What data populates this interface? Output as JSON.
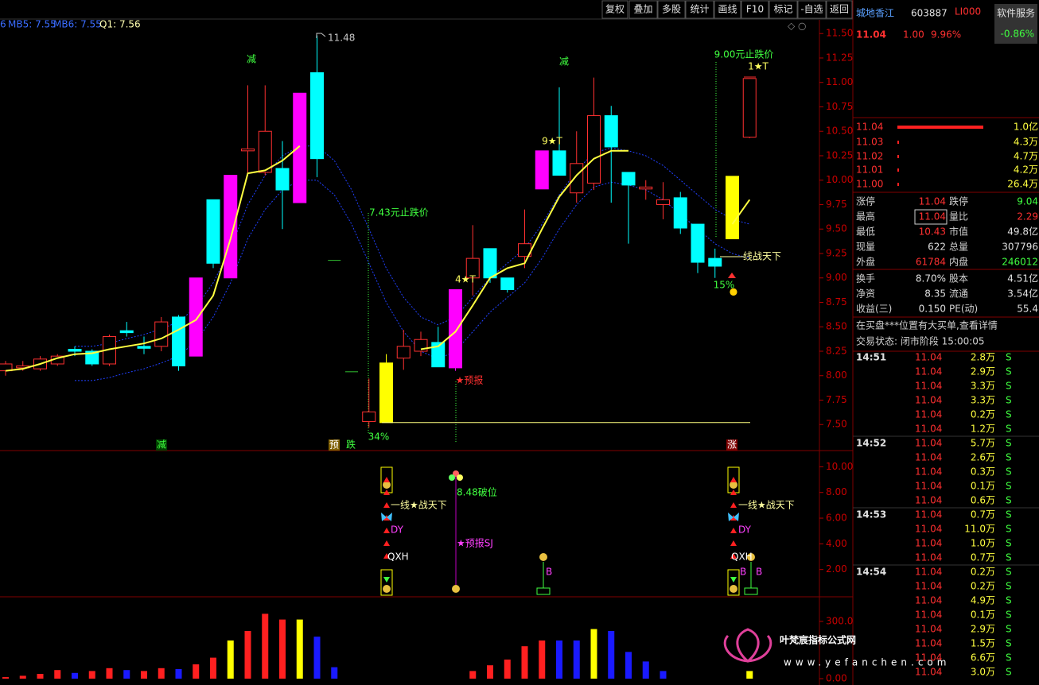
{
  "toolbar": [
    "复权",
    "叠加",
    "多股",
    "统计",
    "画线",
    "F10",
    "标记",
    "-自选",
    "返回"
  ],
  "legend": [
    {
      "text": "6",
      "color": "#3a6cff"
    },
    {
      "text": "MB5: 7.55",
      "color": "#3a6cff"
    },
    {
      "text": "MB6: 7.55",
      "color": "#3a6cff"
    },
    {
      "text": "Q1: 7.56",
      "color": "#ffffb0"
    }
  ],
  "main_chart": {
    "type": "candlestick",
    "ylim": [
      7.25,
      11.64
    ],
    "yticks": [
      {
        "value": 11.5,
        "label": "11.50"
      },
      {
        "value": 11.25,
        "label": "11.25"
      },
      {
        "value": 11.0,
        "label": "11.00"
      },
      {
        "value": 10.75,
        "label": "10.75"
      },
      {
        "value": 10.5,
        "label": "10.50"
      },
      {
        "value": 10.25,
        "label": "10.25"
      },
      {
        "value": 10.0,
        "label": "10.00"
      },
      {
        "value": 9.75,
        "label": "9.75"
      },
      {
        "value": 9.5,
        "label": "9.50"
      },
      {
        "value": 9.25,
        "label": "9.25"
      },
      {
        "value": 9.0,
        "label": "9.00"
      },
      {
        "value": 8.75,
        "label": "8.75"
      },
      {
        "value": 8.5,
        "label": "8.50"
      },
      {
        "value": 8.25,
        "label": "8.25"
      },
      {
        "value": 8.0,
        "label": "8.00"
      },
      {
        "value": 7.75,
        "label": "7.75"
      },
      {
        "value": 7.5,
        "label": "7.50"
      }
    ],
    "candles": [
      {
        "o": 8.05,
        "h": 8.15,
        "l": 8.0,
        "c": 8.12,
        "color": "red"
      },
      {
        "o": 8.08,
        "h": 8.15,
        "l": 8.05,
        "c": 8.1,
        "color": "red"
      },
      {
        "o": 8.07,
        "h": 8.2,
        "l": 8.05,
        "c": 8.17,
        "color": "red"
      },
      {
        "o": 8.12,
        "h": 8.22,
        "l": 8.1,
        "c": 8.2,
        "color": "red"
      },
      {
        "o": 8.27,
        "h": 8.3,
        "l": 8.2,
        "c": 8.25,
        "color": "cyan"
      },
      {
        "o": 8.25,
        "h": 8.27,
        "l": 8.1,
        "c": 8.12,
        "color": "cyan"
      },
      {
        "o": 8.12,
        "h": 8.42,
        "l": 8.1,
        "c": 8.4,
        "color": "red"
      },
      {
        "o": 8.46,
        "h": 8.55,
        "l": 8.4,
        "c": 8.44,
        "color": "cyan"
      },
      {
        "o": 8.3,
        "h": 8.4,
        "l": 8.22,
        "c": 8.28,
        "color": "cyan"
      },
      {
        "o": 8.3,
        "h": 8.6,
        "l": 8.25,
        "c": 8.55,
        "color": "red"
      },
      {
        "o": 8.6,
        "h": 8.62,
        "l": 8.05,
        "c": 8.1,
        "color": "cyan"
      },
      {
        "o": 8.2,
        "h": 9.0,
        "l": 8.2,
        "c": 9.0,
        "color": "magenta"
      },
      {
        "o": 9.8,
        "h": 9.8,
        "l": 9.1,
        "c": 9.15,
        "color": "cyan"
      },
      {
        "o": 9.0,
        "h": 10.05,
        "l": 9.0,
        "c": 10.05,
        "color": "magenta"
      },
      {
        "o": 10.3,
        "h": 10.97,
        "l": 10.05,
        "c": 10.32,
        "color": "red"
      },
      {
        "o": 10.08,
        "h": 10.97,
        "l": 10.05,
        "c": 10.5,
        "color": "red"
      },
      {
        "o": 10.12,
        "h": 10.4,
        "l": 9.5,
        "c": 9.9,
        "color": "cyan"
      },
      {
        "o": 9.77,
        "h": 10.89,
        "l": 9.77,
        "c": 10.89,
        "color": "magenta"
      },
      {
        "o": 11.1,
        "h": 11.48,
        "l": 10.03,
        "c": 10.22,
        "color": "cyan"
      },
      {
        "o": 9.18,
        "h": 9.18,
        "l": 9.18,
        "c": 9.18,
        "color": "green"
      },
      {
        "o": 8.04,
        "h": 8.04,
        "l": 8.04,
        "c": 8.04,
        "color": "green"
      },
      {
        "o": 7.53,
        "h": 7.97,
        "l": 7.47,
        "c": 7.63,
        "color": "red"
      },
      {
        "o": 7.52,
        "h": 8.22,
        "l": 7.52,
        "c": 8.13,
        "color": "yellow"
      },
      {
        "o": 8.18,
        "h": 8.47,
        "l": 8.06,
        "c": 8.3,
        "color": "red"
      },
      {
        "o": 8.25,
        "h": 8.45,
        "l": 8.2,
        "c": 8.37,
        "color": "red"
      },
      {
        "o": 8.34,
        "h": 8.5,
        "l": 8.09,
        "c": 8.09,
        "color": "cyan"
      },
      {
        "o": 8.08,
        "h": 8.88,
        "l": 8.05,
        "c": 8.88,
        "color": "magenta"
      },
      {
        "o": 9.0,
        "h": 9.54,
        "l": 8.82,
        "c": 9.2,
        "color": "red"
      },
      {
        "o": 9.3,
        "h": 9.3,
        "l": 8.95,
        "c": 9.0,
        "color": "cyan"
      },
      {
        "o": 9.0,
        "h": 9.0,
        "l": 8.85,
        "c": 8.88,
        "color": "cyan"
      },
      {
        "o": 9.22,
        "h": 9.7,
        "l": 9.1,
        "c": 9.35,
        "color": "red"
      },
      {
        "o": 9.91,
        "h": 10.3,
        "l": 9.91,
        "c": 10.3,
        "color": "magenta"
      },
      {
        "o": 10.3,
        "h": 10.95,
        "l": 10.05,
        "c": 10.05,
        "color": "cyan"
      },
      {
        "o": 9.87,
        "h": 10.5,
        "l": 9.77,
        "c": 10.17,
        "color": "red"
      },
      {
        "o": 9.97,
        "h": 11.05,
        "l": 9.9,
        "c": 10.66,
        "color": "red"
      },
      {
        "o": 10.66,
        "h": 10.76,
        "l": 9.77,
        "c": 10.34,
        "color": "cyan"
      },
      {
        "o": 10.08,
        "h": 10.08,
        "l": 9.35,
        "c": 9.95,
        "color": "cyan"
      },
      {
        "o": 9.91,
        "h": 10.0,
        "l": 9.8,
        "c": 9.93,
        "color": "red"
      },
      {
        "o": 9.75,
        "h": 9.98,
        "l": 9.6,
        "c": 9.8,
        "color": "red"
      },
      {
        "o": 9.82,
        "h": 9.88,
        "l": 9.45,
        "c": 9.51,
        "color": "cyan"
      },
      {
        "o": 9.55,
        "h": 9.55,
        "l": 9.05,
        "c": 9.16,
        "color": "cyan"
      },
      {
        "o": 9.2,
        "h": 9.3,
        "l": 9.0,
        "c": 9.12,
        "color": "cyan"
      },
      {
        "o": 9.4,
        "h": 10.04,
        "l": 9.4,
        "c": 10.04,
        "color": "yellow"
      },
      {
        "o": 10.44,
        "h": 11.04,
        "l": 10.43,
        "c": 11.04,
        "color": "red"
      }
    ],
    "ma": [
      8.05,
      8.07,
      8.12,
      8.18,
      8.22,
      8.23,
      8.27,
      8.3,
      8.33,
      8.38,
      8.47,
      8.57,
      8.82,
      9.4,
      10.07,
      10.1,
      10.2,
      10.35,
      null,
      null,
      null,
      null,
      null,
      null,
      8.27,
      8.3,
      8.45,
      8.72,
      9.0,
      9.1,
      9.15,
      9.5,
      9.83,
      10.05,
      10.22,
      10.3,
      10.3,
      null,
      null,
      null,
      null,
      null,
      9.55,
      9.8
    ],
    "bands": [
      [
        null,
        null,
        null,
        null,
        8.3,
        8.3,
        8.33,
        8.38,
        8.42,
        8.48,
        8.55,
        8.7,
        8.95,
        9.3,
        9.75,
        10.05,
        10.25,
        10.35,
        10.35,
        10.2,
        9.9,
        9.5,
        9.1,
        8.8,
        8.6,
        8.52,
        8.6,
        8.8,
        9.0,
        9.15,
        9.3,
        9.55,
        9.85,
        10.1,
        10.28,
        10.33,
        10.3,
        10.25,
        10.15,
        10.0,
        9.85,
        9.7,
        9.6,
        9.55
      ],
      [
        null,
        null,
        null,
        null,
        7.95,
        7.95,
        7.98,
        8.03,
        8.07,
        8.13,
        8.2,
        8.35,
        8.6,
        8.95,
        9.4,
        9.7,
        9.9,
        10.0,
        10.0,
        9.85,
        9.55,
        9.15,
        8.75,
        8.45,
        8.25,
        8.17,
        8.25,
        8.45,
        8.65,
        8.8,
        8.95,
        9.2,
        9.5,
        9.75,
        9.93,
        9.98,
        9.95,
        9.9,
        9.8,
        9.65,
        9.5,
        9.35,
        9.25,
        9.2
      ]
    ],
    "support_line": 7.52,
    "annotations": [
      {
        "text": "11.48",
        "color": "#c8c8c8"
      },
      {
        "text": "减",
        "color": "#40ff40"
      },
      {
        "text": "减",
        "color": "#40ff40"
      },
      {
        "text": "7.43元止跌价",
        "color": "#40ff40"
      },
      {
        "text": "4★T",
        "color": "#ffff60"
      },
      {
        "text": "9★T",
        "color": "#ffff60"
      },
      {
        "text": "1★T",
        "color": "#ffff60"
      },
      {
        "text": "9.00元止跌价",
        "color": "#40ff40"
      },
      {
        "text": "线战天下",
        "color": "#ffffa0"
      },
      {
        "text": "15%",
        "color": "#40ff40"
      },
      {
        "text": "★预报",
        "color": "#ff3030"
      },
      {
        "text": "34%",
        "color": "#40ff40"
      },
      {
        "text": "减",
        "color": "#40ff40"
      },
      {
        "text": "预",
        "color": "#ffffff"
      },
      {
        "text": "跌",
        "color": "#40ff40"
      },
      {
        "text": "涨",
        "color": "#ffffff"
      }
    ]
  },
  "indicator": {
    "ylim": [
      0,
      11.2
    ],
    "yticks": [
      {
        "value": 10,
        "label": "10.00"
      },
      {
        "value": 8,
        "label": "8.00"
      },
      {
        "value": 6,
        "label": "6.00"
      },
      {
        "value": 4,
        "label": "4.00"
      },
      {
        "value": 2,
        "label": "2.00"
      }
    ],
    "annotations": [
      {
        "text": "一线★战天下",
        "color": "#ffffa0"
      },
      {
        "text": "DY",
        "color": "#ff40ff"
      },
      {
        "text": "QXH",
        "color": "#ffffff"
      },
      {
        "text": "8.48破位",
        "color": "#40ff40"
      },
      {
        "text": "★预报SJ",
        "color": "#ff40ff"
      },
      {
        "text": "B",
        "color": "#ff40ff"
      },
      {
        "text": "一线★战天下",
        "color": "#ffffa0"
      },
      {
        "text": "DY",
        "color": "#ff40ff"
      },
      {
        "text": "QXH",
        "color": "#ffffff"
      },
      {
        "text": "B",
        "color": "#ff40ff"
      },
      {
        "text": "B",
        "color": "#ff40ff"
      }
    ]
  },
  "volume": {
    "ylim": [
      0,
      425
    ],
    "yticks": [
      {
        "value": 300,
        "label": "300.0"
      },
      {
        "value": 0,
        "label": "0.00"
      }
    ],
    "values": [
      8,
      15,
      25,
      45,
      30,
      40,
      55,
      45,
      40,
      55,
      50,
      75,
      110,
      200,
      250,
      340,
      310,
      310,
      220,
      60,
      null,
      null,
      null,
      null,
      null,
      null,
      null,
      40,
      70,
      100,
      170,
      200,
      200,
      200,
      260,
      250,
      140,
      90,
      40,
      null,
      null,
      null,
      null,
      40
    ],
    "colors": [
      "red",
      "red",
      "red",
      "red",
      "blue",
      "red",
      "red",
      "blue",
      "red",
      "red",
      "blue",
      "red",
      "red",
      "yellow",
      "red",
      "red",
      "red",
      "yellow",
      "blue",
      "blue",
      null,
      null,
      null,
      null,
      null,
      null,
      null,
      "red",
      "red",
      "red",
      "red",
      "red",
      "blue",
      "blue",
      "yellow",
      "blue",
      "blue",
      "blue",
      "blue",
      null,
      null,
      null,
      null,
      "yellow"
    ]
  },
  "quote": {
    "name": "城地香江",
    "code": "603887",
    "tag": "LI000",
    "sector": "软件服务",
    "price": "11.04",
    "change": "1.00",
    "pct": "9.96%",
    "sector_pct": "-0.86%",
    "book": [
      [
        "11.04",
        "1.0亿"
      ],
      [
        "11.03",
        "4.3万"
      ],
      [
        "11.02",
        "4.7万"
      ],
      [
        "11.01",
        "4.2万"
      ],
      [
        "11.00",
        "26.4万"
      ]
    ],
    "stats": [
      [
        "涨停",
        "11.04",
        "跌停",
        "9.04"
      ],
      [
        "最高",
        "11.04",
        "量比",
        "2.29"
      ],
      [
        "最低",
        "10.43",
        "市值",
        "49.8亿"
      ],
      [
        "现量",
        "622",
        "总量",
        "307796"
      ],
      [
        "外盘",
        "61784",
        "内盘",
        "246012"
      ],
      [
        "换手",
        "8.70%",
        "股本",
        "4.51亿"
      ],
      [
        "净资",
        "8.35",
        "流通",
        "3.54亿"
      ],
      [
        "收益(三)",
        "0.150",
        "PE(动)",
        "55.4"
      ]
    ],
    "notice": "在买盘***位置有大买单,查看详情",
    "status": "交易状态: 闭市阶段 15:00:05",
    "ticks": [
      {
        "time": "14:51",
        "rows": [
          [
            "11.04",
            "2.8万",
            "S"
          ],
          [
            "11.04",
            "2.9万",
            "S"
          ],
          [
            "11.04",
            "3.3万",
            "S"
          ],
          [
            "11.04",
            "3.3万",
            "S"
          ],
          [
            "11.04",
            "0.2万",
            "S"
          ],
          [
            "11.04",
            "1.2万",
            "S"
          ]
        ]
      },
      {
        "time": "14:52",
        "rows": [
          [
            "11.04",
            "5.7万",
            "S"
          ],
          [
            "11.04",
            "2.6万",
            "S"
          ],
          [
            "11.04",
            "0.3万",
            "S"
          ],
          [
            "11.04",
            "0.1万",
            "S"
          ],
          [
            "11.04",
            "0.6万",
            "S"
          ]
        ]
      },
      {
        "time": "14:53",
        "rows": [
          [
            "11.04",
            "0.7万",
            "S"
          ],
          [
            "11.04",
            "11.0万",
            "S"
          ],
          [
            "11.04",
            "1.0万",
            "S"
          ],
          [
            "11.04",
            "0.7万",
            "S"
          ]
        ]
      },
      {
        "time": "14:54",
        "rows": [
          [
            "11.04",
            "0.2万",
            "S"
          ],
          [
            "11.04",
            "0.2万",
            "S"
          ],
          [
            "11.04",
            "4.9万",
            "S"
          ],
          [
            "11.04",
            "0.1万",
            "S"
          ],
          [
            "11.04",
            "2.9万",
            "S"
          ],
          [
            "11.04",
            "1.5万",
            "S"
          ],
          [
            "11.04",
            "6.6万",
            "S"
          ],
          [
            "11.04",
            "3.0万",
            "S"
          ]
        ]
      }
    ]
  },
  "watermark": {
    "title": "叶梵宸指标公式网",
    "url": "www.yefanchen.com"
  }
}
